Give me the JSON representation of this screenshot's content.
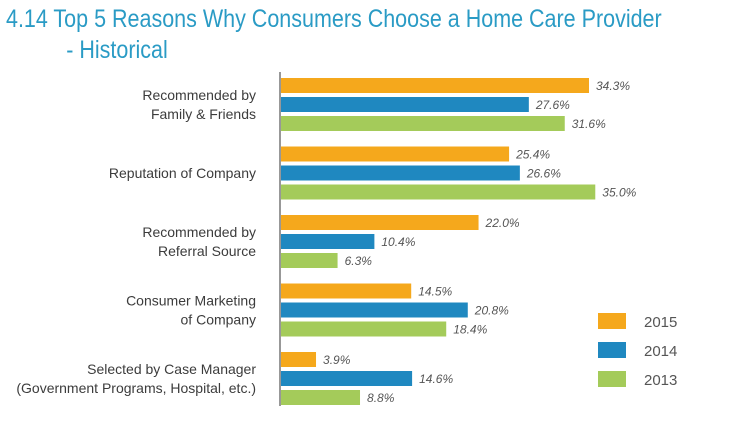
{
  "title": {
    "line1": "4.14 Top 5 Reasons Why Consumers Choose a Home Care Provider",
    "line2": "- Historical"
  },
  "colors": {
    "2015": "#f5a81c",
    "2014": "#1f88c0",
    "2013": "#a4cb5a",
    "axis": "#777777"
  },
  "chart_data": {
    "type": "bar",
    "orientation": "horizontal",
    "title": "4.14 Top 5 Reasons Why Consumers Choose a Home Care Provider - Historical",
    "categories": [
      [
        "Recommended by",
        "Family & Friends"
      ],
      [
        "Reputation of Company"
      ],
      [
        "Recommended by",
        "Referral Source"
      ],
      [
        "Consumer Marketing",
        "of Company"
      ],
      [
        "Selected by Case Manager",
        "(Government Programs, Hospital, etc.)"
      ]
    ],
    "series": [
      {
        "name": "2015",
        "values": [
          34.3,
          25.4,
          22.0,
          14.5,
          3.9
        ],
        "labels": [
          "34.3%",
          "25.4%",
          "22.0%",
          "14.5%",
          "3.9%"
        ]
      },
      {
        "name": "2014",
        "values": [
          27.6,
          26.6,
          10.4,
          20.8,
          14.6
        ],
        "labels": [
          "27.6%",
          "26.6%",
          "10.4%",
          "20.8%",
          "14.6%"
        ]
      },
      {
        "name": "2013",
        "values": [
          31.6,
          35.0,
          6.3,
          18.4,
          8.8
        ],
        "labels": [
          "31.6%",
          "35.0%",
          "6.3%",
          "18.4%",
          "8.8%"
        ]
      }
    ],
    "xlim": [
      0,
      35
    ],
    "legend": [
      "2015",
      "2014",
      "2013"
    ],
    "legend_position": "bottom-right",
    "xlabel": "",
    "ylabel": ""
  }
}
